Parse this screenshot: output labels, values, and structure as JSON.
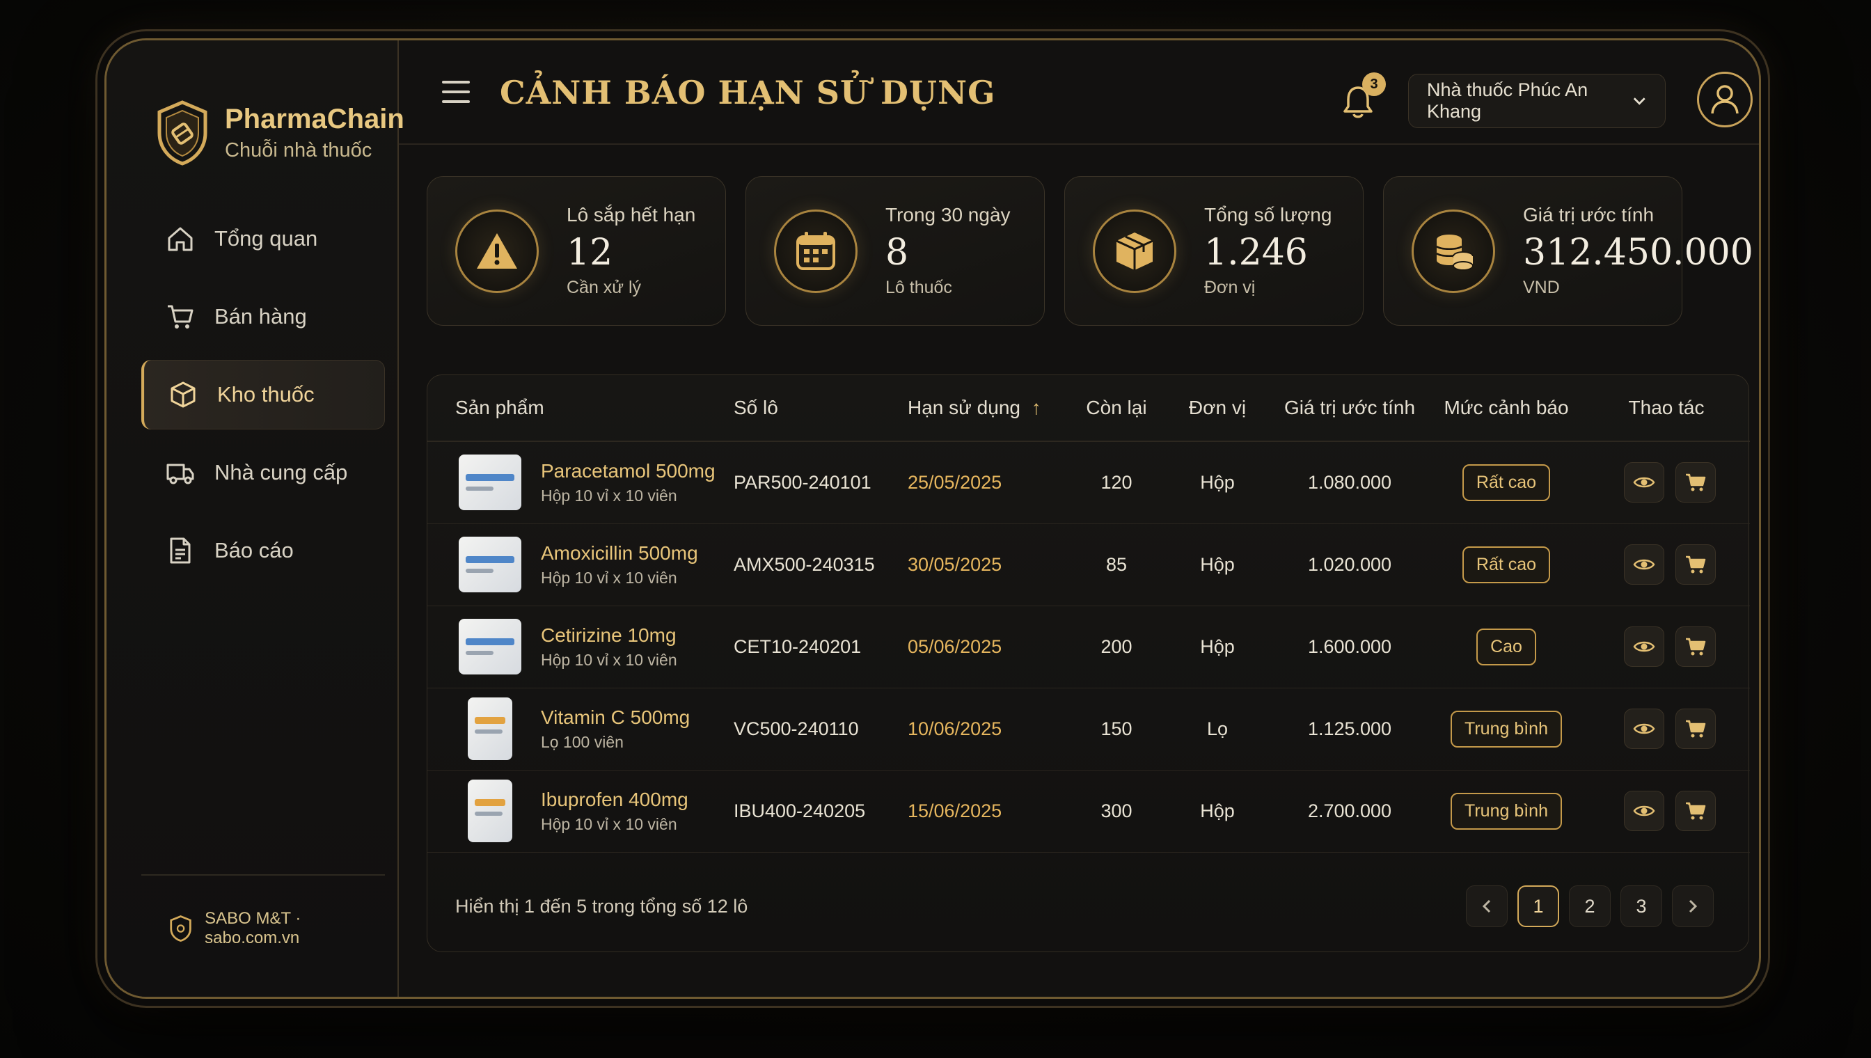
{
  "brand": {
    "name": "PharmaChain",
    "subtitle": "Chuỗi nhà thuốc"
  },
  "sidebar": {
    "items": [
      {
        "label": "Tổng quan",
        "icon": "home-icon",
        "active": false
      },
      {
        "label": "Bán hàng",
        "icon": "cart-icon",
        "active": false
      },
      {
        "label": "Kho thuốc",
        "icon": "box-icon",
        "active": true
      },
      {
        "label": "Nhà cung cấp",
        "icon": "truck-icon",
        "active": false
      },
      {
        "label": "Báo cáo",
        "icon": "report-icon",
        "active": false
      }
    ],
    "footer": "SABO M&T · sabo.com.vn"
  },
  "header": {
    "title": "CẢNH BÁO HẠN SỬ DỤNG",
    "notifications": "3",
    "store": "Nhà thuốc Phúc An Khang"
  },
  "stats": [
    {
      "label": "Lô sắp hết hạn",
      "value": "12",
      "sub": "Cần xử lý",
      "icon": "warning-icon"
    },
    {
      "label": "Trong 30 ngày",
      "value": "8",
      "sub": "Lô thuốc",
      "icon": "calendar-icon"
    },
    {
      "label": "Tổng số lượng",
      "value": "1.246",
      "sub": "Đơn vị",
      "icon": "package-icon"
    },
    {
      "label": "Giá trị ước tính",
      "value": "312.450.000",
      "sub": "VND",
      "icon": "coins-icon"
    }
  ],
  "table": {
    "columns": [
      "Sản phẩm",
      "Số lô",
      "Hạn sử dụng",
      "Còn lại",
      "Đơn vị",
      "Giá trị ước tính",
      "Mức cảnh báo",
      "Thao tác"
    ],
    "sort_arrow": "↑",
    "rows": [
      {
        "name": "Paracetamol 500mg",
        "desc": "Hộp 10 vỉ x 10 viên",
        "lot": "PAR500-240101",
        "expiry": "25/05/2025",
        "remaining": "120",
        "unit": "Hộp",
        "value": "1.080.000",
        "level": "Rất cao"
      },
      {
        "name": "Amoxicillin 500mg",
        "desc": "Hộp 10 vỉ x 10 viên",
        "lot": "AMX500-240315",
        "expiry": "30/05/2025",
        "remaining": "85",
        "unit": "Hộp",
        "value": "1.020.000",
        "level": "Rất cao"
      },
      {
        "name": "Cetirizine 10mg",
        "desc": "Hộp 10 vỉ x 10 viên",
        "lot": "CET10-240201",
        "expiry": "05/06/2025",
        "remaining": "200",
        "unit": "Hộp",
        "value": "1.600.000",
        "level": "Cao"
      },
      {
        "name": "Vitamin C 500mg",
        "desc": "Lọ 100 viên",
        "lot": "VC500-240110",
        "expiry": "10/06/2025",
        "remaining": "150",
        "unit": "Lọ",
        "value": "1.125.000",
        "level": "Trung bình"
      },
      {
        "name": "Ibuprofen 400mg",
        "desc": "Hộp 10 vỉ x 10 viên",
        "lot": "IBU400-240205",
        "expiry": "15/06/2025",
        "remaining": "300",
        "unit": "Hộp",
        "value": "2.700.000",
        "level": "Trung bình"
      }
    ],
    "footer": "Hiển thị 1 đến 5 trong tổng số 12 lô",
    "pages": [
      "1",
      "2",
      "3"
    ],
    "current_page": "1"
  },
  "colors": {
    "accent": "#d4aa5a",
    "background": "#121110",
    "expiry": "#e6b65e"
  }
}
